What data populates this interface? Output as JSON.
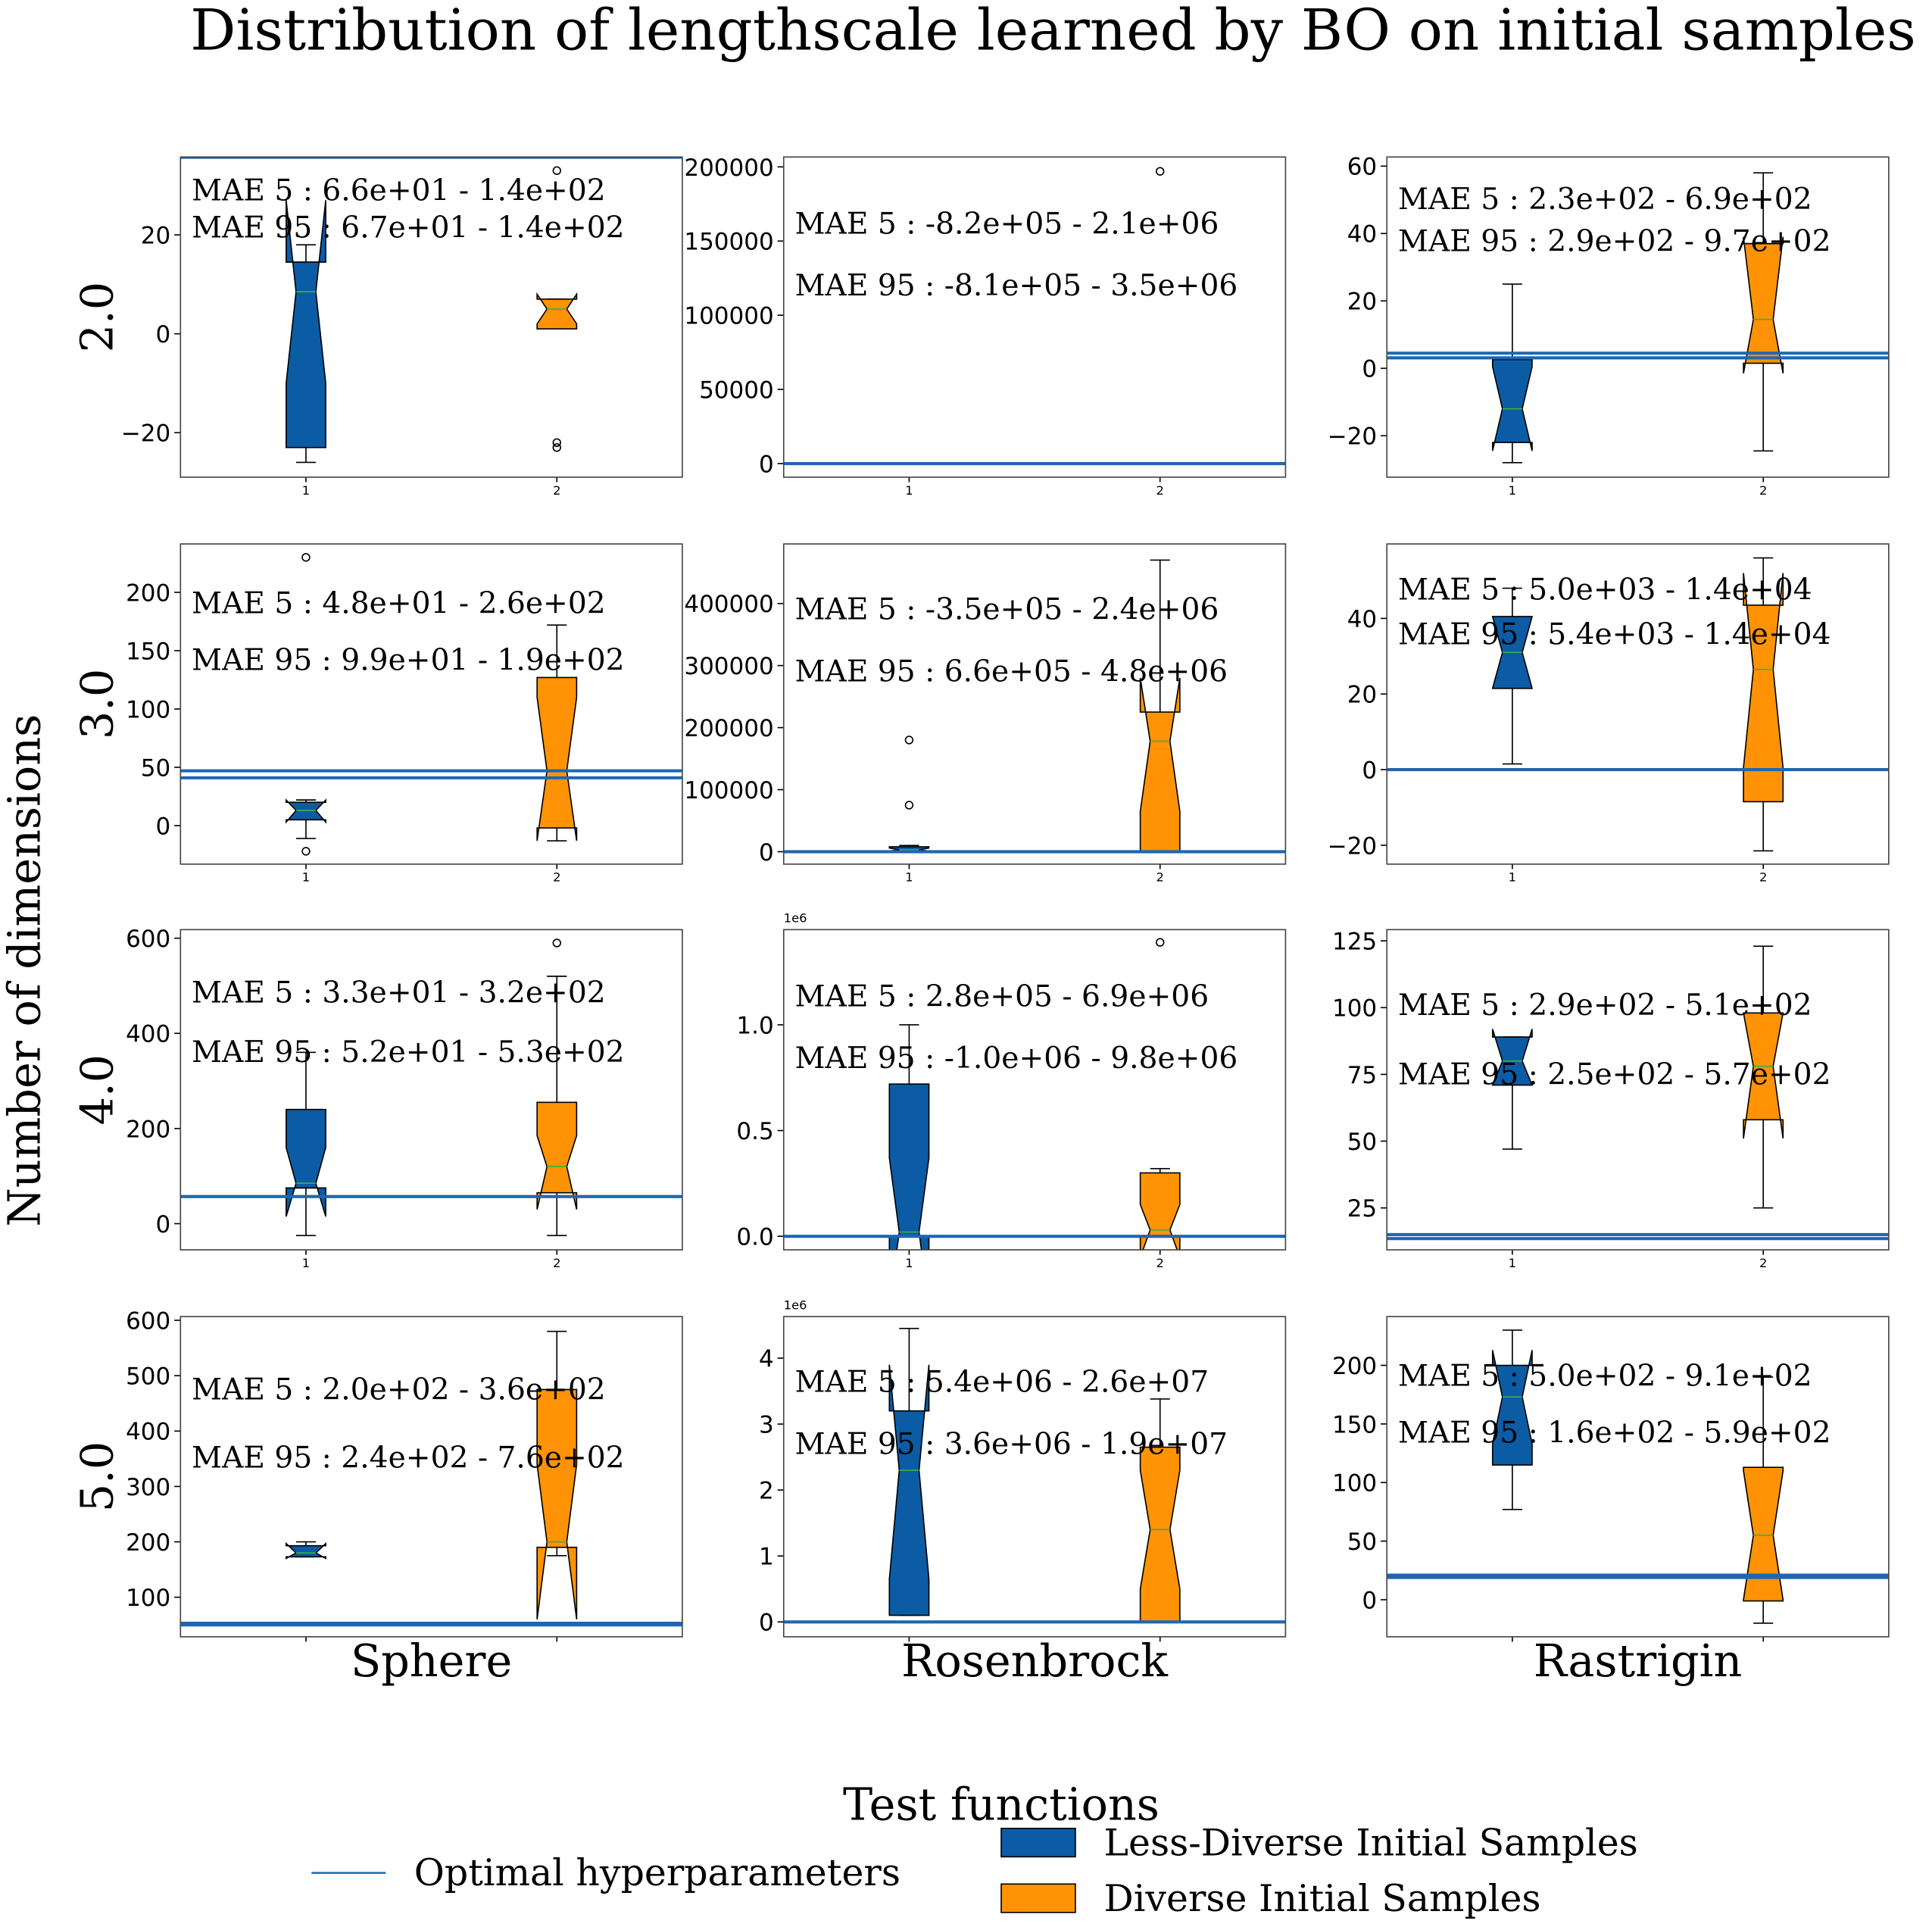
{
  "title": "Distribution of lengthscale learned by BO on initial samples",
  "x_label": "Test functions",
  "y_label": "Number of dimensions",
  "series": [
    {
      "name": "Less-Diverse Initial Samples",
      "color": "#0b5ca5"
    },
    {
      "name": "Diverse Initial Samples",
      "color": "#ff9305"
    }
  ],
  "reference_line": {
    "name": "Optimal hyperparameters",
    "color": "#1f66b0"
  },
  "median_color": "#3cb043",
  "chart_data": [
    {
      "type": "box",
      "row_label": "2.0",
      "categories": [
        "1",
        "2"
      ],
      "ylim": [
        -29,
        35.75
      ],
      "yticks": [
        {
          "value": -20,
          "label": "−20"
        },
        0,
        20
      ],
      "hlines": [
        35.7
      ],
      "boxes": [
        {
          "whislo": -26,
          "q1": -23,
          "notch_lo": -10,
          "med": 8.5,
          "notch_hi": 27,
          "q3": 14.5,
          "whishi": 18,
          "fliers": []
        },
        {
          "whislo": 1,
          "q1": 1,
          "notch_lo": 2,
          "med": 5,
          "notch_hi": 8,
          "q3": 7,
          "whishi": 7,
          "fliers": [
            33,
            -23,
            -22
          ]
        }
      ],
      "annotations": [
        "MAE 5 : 6.6e+01 - 1.4e+02",
        "MAE 95 : 6.7e+01 - 1.4e+02"
      ]
    },
    {
      "type": "box",
      "categories": [
        "1",
        "2"
      ],
      "ylim": [
        -9167,
        206667
      ],
      "yticks": [
        0,
        50000,
        100000,
        150000,
        200000
      ],
      "hlines": [
        0
      ],
      "boxes": [
        {
          "whislo": 0,
          "q1": 5,
          "notch_lo": 10,
          "med": 20,
          "notch_hi": 30,
          "q3": 60,
          "whishi": 150,
          "fliers": []
        },
        {
          "whislo": 0,
          "q1": 5,
          "notch_lo": 10,
          "med": 20,
          "notch_hi": 30,
          "q3": 60,
          "whishi": 150,
          "fliers": [
            197000
          ]
        }
      ],
      "annotations": [
        "MAE 5 : -8.2e+05 - 2.1e+06",
        "MAE 95 : -8.1e+05 - 3.5e+06"
      ]
    },
    {
      "type": "box",
      "categories": [
        "1",
        "2"
      ],
      "ylim": [
        -32.3,
        62.7
      ],
      "yticks": [
        {
          "value": -20,
          "label": "−20"
        },
        0,
        20,
        40,
        60
      ],
      "hlines": [
        3.1,
        4.5
      ],
      "boxes": [
        {
          "whislo": -28,
          "q1": -22,
          "notch_lo": -24.5,
          "med": -12,
          "notch_hi": 0.5,
          "q3": 2.6,
          "whishi": 25,
          "fliers": []
        },
        {
          "whislo": -24.5,
          "q1": 1.5,
          "notch_lo": -1.5,
          "med": 14.5,
          "notch_hi": 39,
          "q3": 37,
          "whishi": 58,
          "fliers": []
        }
      ],
      "annotations": [
        "MAE 5 : 2.3e+02 - 6.9e+02",
        "MAE 95 : 2.9e+02 - 9.7e+02"
      ]
    },
    {
      "type": "box",
      "row_label": "3.0",
      "categories": [
        "1",
        "2"
      ],
      "ylim": [
        -33,
        241.5
      ],
      "yticks": [
        0,
        50,
        100,
        150,
        200
      ],
      "hlines": [
        41,
        47
      ],
      "boxes": [
        {
          "whislo": -11,
          "q1": 5,
          "notch_lo": 3,
          "med": 13,
          "notch_hi": 22,
          "q3": 20,
          "whishi": 22,
          "fliers": [
            230,
            -22
          ]
        },
        {
          "whislo": -13,
          "q1": -2,
          "notch_lo": -13,
          "med": 47,
          "notch_hi": 110,
          "q3": 127,
          "whishi": 172,
          "fliers": []
        }
      ],
      "annotations": [
        "MAE 5 : 4.8e+01 - 2.6e+02",
        "MAE 95 : 9.9e+01 - 1.9e+02"
      ]
    },
    {
      "type": "box",
      "categories": [
        "1",
        "2"
      ],
      "ylim": [
        -20000,
        496000
      ],
      "yticks": [
        0,
        100000,
        200000,
        300000,
        400000
      ],
      "hlines": [
        0
      ],
      "boxes": [
        {
          "whislo": 0,
          "q1": 0,
          "notch_lo": 1000,
          "med": 3000,
          "notch_hi": 6000,
          "q3": 8000,
          "whishi": 10000,
          "fliers": [
            180000,
            75000
          ]
        },
        {
          "whislo": 0,
          "q1": 0,
          "notch_lo": 65000,
          "med": 178000,
          "notch_hi": 280000,
          "q3": 225000,
          "whishi": 470000,
          "fliers": []
        }
      ],
      "annotations": [
        "MAE 5 : -3.5e+05 - 2.4e+06",
        "MAE 95 : 6.6e+05 - 4.8e+06"
      ]
    },
    {
      "type": "box",
      "categories": [
        "1",
        "2"
      ],
      "ylim": [
        -25,
        59.7
      ],
      "yticks": [
        {
          "value": -20,
          "label": "−20"
        },
        0,
        20,
        40
      ],
      "hlines": [
        0
      ],
      "boxes": [
        {
          "whislo": 1.5,
          "q1": 21.5,
          "notch_lo": 21.5,
          "med": 31,
          "notch_hi": 40.5,
          "q3": 40.5,
          "whishi": 48,
          "fliers": []
        },
        {
          "whislo": -21.5,
          "q1": -8.5,
          "notch_lo": 0.5,
          "med": 26.5,
          "notch_hi": 52,
          "q3": 43.5,
          "whishi": 56,
          "fliers": []
        }
      ],
      "annotations": [
        "MAE 5 : 5.0e+03 - 1.4e+04",
        "MAE 95 : 5.4e+03 - 1.4e+04"
      ]
    },
    {
      "type": "box",
      "row_label": "4.0",
      "categories": [
        "1",
        "2"
      ],
      "ylim": [
        -55,
        618
      ],
      "yticks": [
        0,
        200,
        400,
        600
      ],
      "hlines": [
        57
      ],
      "boxes": [
        {
          "whislo": -25,
          "q1": 75,
          "notch_lo": 15,
          "med": 85,
          "notch_hi": 160,
          "q3": 240,
          "whishi": 360,
          "fliers": []
        },
        {
          "whislo": -25,
          "q1": 65,
          "notch_lo": 30,
          "med": 120,
          "notch_hi": 185,
          "q3": 255,
          "whishi": 520,
          "fliers": [
            590
          ]
        }
      ],
      "annotations": [
        "MAE 5 : 3.3e+01 - 3.2e+02",
        "MAE 95 : 5.2e+01 - 5.3e+02"
      ]
    },
    {
      "type": "box",
      "categories": [
        "1",
        "2"
      ],
      "offset_label": "1e6",
      "ylim": [
        -0.064,
        1.45
      ],
      "yticks": [
        {
          "value": 0,
          "label": "0.0"
        },
        0.5,
        {
          "value": 1,
          "label": "1.0"
        }
      ],
      "hlines": [
        0
      ],
      "boxes": [
        {
          "whislo": 0,
          "q1": 0,
          "notch_lo": -0.33,
          "med": 0.02,
          "notch_hi": 0.37,
          "q3": 0.72,
          "whishi": 1.0,
          "fliers": []
        },
        {
          "whislo": 0,
          "q1": 0,
          "notch_lo": -0.1,
          "med": 0.03,
          "notch_hi": 0.15,
          "q3": 0.3,
          "whishi": 0.32,
          "fliers": [
            1.39
          ]
        }
      ],
      "annotations": [
        "MAE 5 : 2.8e+05 - 6.9e+06",
        "MAE 95 : -1.0e+06 - 9.8e+06"
      ]
    },
    {
      "type": "box",
      "categories": [
        "1",
        "2"
      ],
      "ylim": [
        9.3,
        129.2
      ],
      "yticks": [
        25,
        50,
        75,
        100,
        125
      ],
      "hlines": [
        13.5,
        15
      ],
      "boxes": [
        {
          "whislo": 47,
          "q1": 71,
          "notch_lo": 71,
          "med": 80,
          "notch_hi": 92,
          "q3": 89,
          "whishi": 89,
          "fliers": []
        },
        {
          "whislo": 25,
          "q1": 58,
          "notch_lo": 51,
          "med": 78,
          "notch_hi": 98,
          "q3": 98,
          "whishi": 123,
          "fliers": []
        }
      ],
      "annotations": [
        "MAE 5 : 2.9e+02 - 5.1e+02",
        "MAE 95 : 2.5e+02 - 5.7e+02"
      ]
    },
    {
      "type": "box",
      "row_label": "5.0",
      "column_label": "Sphere",
      "categories": [
        null,
        null
      ],
      "ylim": [
        28.6,
        606.7
      ],
      "yticks": [
        100,
        200,
        300,
        400,
        500,
        600
      ],
      "hlines": [
        50,
        53
      ],
      "boxes": [
        {
          "whislo": 173,
          "q1": 173,
          "notch_lo": 170,
          "med": 180,
          "notch_hi": 197,
          "q3": 193,
          "whishi": 200,
          "fliers": []
        },
        {
          "whislo": 175,
          "q1": 190,
          "notch_lo": 60,
          "med": 200,
          "notch_hi": 340,
          "q3": 475,
          "whishi": 580,
          "fliers": []
        }
      ],
      "annotations": [
        "MAE 5 : 2.0e+02 - 3.6e+02",
        "MAE 95 : 2.4e+02 - 7.6e+02"
      ]
    },
    {
      "type": "box",
      "column_label": "Rosenbrock",
      "categories": [
        null,
        null
      ],
      "offset_label": "1e6",
      "ylim": [
        -0.225,
        4.63
      ],
      "yticks": [
        0,
        1,
        2,
        3,
        4
      ],
      "hlines": [
        0
      ],
      "boxes": [
        {
          "whislo": 0.1,
          "q1": 0.1,
          "notch_lo": 0.65,
          "med": 2.3,
          "notch_hi": 3.9,
          "q3": 3.2,
          "whishi": 4.45,
          "fliers": []
        },
        {
          "whislo": 0,
          "q1": 0,
          "notch_lo": 0.5,
          "med": 1.4,
          "notch_hi": 2.3,
          "q3": 2.65,
          "whishi": 3.38,
          "fliers": []
        }
      ],
      "annotations": [
        "MAE 5 : 5.4e+06 - 2.6e+07",
        "MAE 95 : 3.6e+06 - 1.9e+07"
      ]
    },
    {
      "type": "box",
      "column_label": "Rastrigin",
      "categories": [
        null,
        null
      ],
      "ylim": [
        -31.6,
        241.6
      ],
      "yticks": [
        0,
        50,
        100,
        150,
        200
      ],
      "hlines": [
        19,
        21
      ],
      "boxes": [
        {
          "whislo": 77,
          "q1": 115,
          "notch_lo": 133,
          "med": 173,
          "notch_hi": 213,
          "q3": 200,
          "whishi": 230,
          "fliers": []
        },
        {
          "whislo": -20,
          "q1": -1,
          "notch_lo": 0,
          "med": 55,
          "notch_hi": 110,
          "q3": 113,
          "whishi": 190,
          "fliers": []
        }
      ],
      "annotations": [
        "MAE 5 : 5.0e+02 - 9.1e+02",
        "MAE 95 : 1.6e+02 - 5.9e+02"
      ]
    }
  ]
}
